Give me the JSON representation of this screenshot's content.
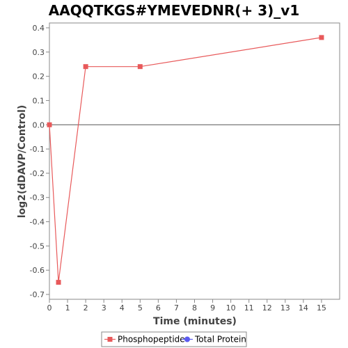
{
  "chart_data": {
    "type": "line",
    "title": "AAQQTKGS#YMEVEDNR(+ 3)_v1",
    "xlabel": "Time (minutes)",
    "ylabel": "log2(dDAVP/Control)",
    "xlim": [
      0,
      16
    ],
    "ylim": [
      -0.72,
      0.42
    ],
    "xticks": [
      0,
      1,
      2,
      3,
      4,
      5,
      6,
      7,
      8,
      9,
      10,
      11,
      12,
      13,
      14,
      15
    ],
    "yticks": [
      -0.7,
      -0.6,
      -0.5,
      -0.4,
      -0.3,
      -0.2,
      -0.1,
      0.0,
      0.1,
      0.2,
      0.3,
      0.4
    ],
    "ytick_labels": [
      "-0.7",
      "-0.6",
      "-0.5",
      "-0.4",
      "-0.3",
      "-0.2",
      "-0.1",
      "0.0",
      "0.1",
      "0.2",
      "0.3",
      "0.4"
    ],
    "grid": false,
    "legend_position": "bottom",
    "series": [
      {
        "name": "Phosphopeptide",
        "color": "#e8595a",
        "marker": "square",
        "x": [
          0,
          0.5,
          2,
          5,
          15
        ],
        "y": [
          0.0,
          -0.65,
          0.24,
          0.24,
          0.36
        ]
      },
      {
        "name": "Total Protein",
        "color": "#5b5bf0",
        "marker": "circle",
        "x": [],
        "y": []
      }
    ]
  }
}
